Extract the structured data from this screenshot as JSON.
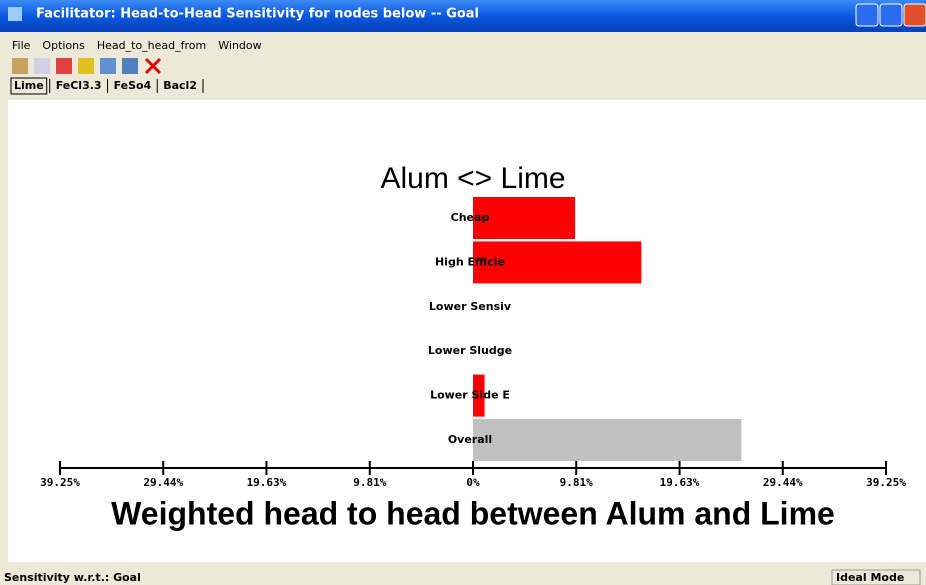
{
  "window": {
    "title": "Facilitator: Head-to-Head Sensitivity for nodes below -- Goal"
  },
  "menu": [
    "File",
    "Options",
    "Head_to_head_from",
    "Window"
  ],
  "tabs": [
    "Lime",
    "FeCl3.3",
    "FeSo4",
    "Bacl2"
  ],
  "chart_data": {
    "type": "hbar",
    "title": "Alum <> Lime",
    "x_label": "Weighted head to head between Alum and Lime",
    "categories": [
      "Cheap",
      "High Efficie",
      "Lower Sensiv",
      "Lower Sludge",
      "Lower Side E",
      "Overall"
    ],
    "values": [
      9.7,
      16.0,
      0,
      0,
      1.1,
      25.5
    ],
    "colors": [
      "#ff0000",
      "#ff0000",
      "#ff0000",
      "#ff0000",
      "#ff0000",
      "#c0c0c0"
    ],
    "xlim": [
      -39.25,
      39.25
    ],
    "xticks": [
      {
        "value": -39.25,
        "label": "39.25%"
      },
      {
        "value": -29.44,
        "label": "29.44%"
      },
      {
        "value": -19.63,
        "label": "19.63%"
      },
      {
        "value": -9.81,
        "label": "9.81%"
      },
      {
        "value": 0,
        "label": "0%"
      },
      {
        "value": 9.81,
        "label": "9.81%"
      },
      {
        "value": 19.63,
        "label": "19.63%"
      },
      {
        "value": 29.44,
        "label": "29.44%"
      },
      {
        "value": 39.25,
        "label": "39.25%"
      }
    ]
  },
  "status": {
    "left": "Sensitivity w.r.t.: Goal",
    "right": "Ideal Mode"
  }
}
